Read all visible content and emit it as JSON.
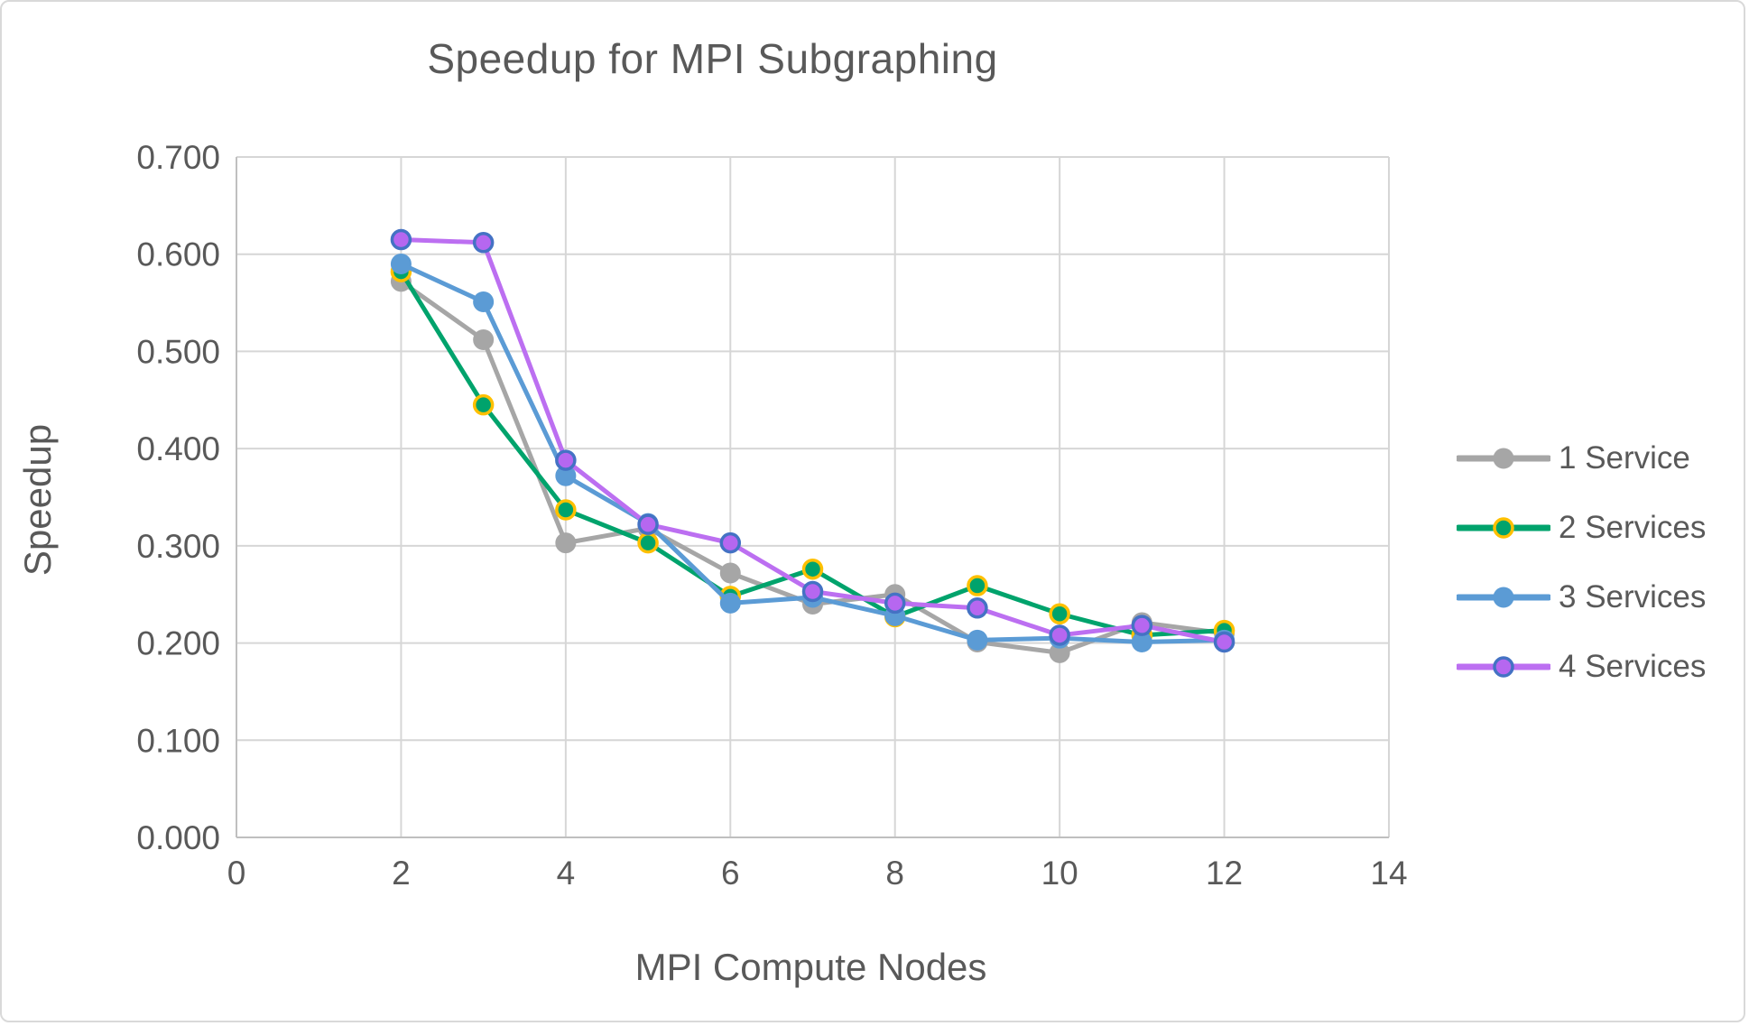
{
  "chart_data": {
    "type": "line",
    "title": "Speedup for MPI Subgraphing",
    "xlabel": "MPI Compute Nodes",
    "ylabel": "Speedup",
    "xlim": [
      0,
      14
    ],
    "ylim": [
      0.0,
      0.7
    ],
    "x_ticks": [
      0,
      2,
      4,
      6,
      8,
      10,
      12,
      14
    ],
    "y_ticks": [
      0.0,
      0.1,
      0.2,
      0.3,
      0.4,
      0.5,
      0.6,
      0.7
    ],
    "y_tick_decimals": 3,
    "grid": true,
    "legend_position": "right",
    "x": [
      2,
      3,
      4,
      5,
      6,
      7,
      8,
      9,
      10,
      11,
      12
    ],
    "series": [
      {
        "name": "1 Service",
        "color": "#A6A6A6",
        "marker_fill": "#A6A6A6",
        "marker_stroke": "#A6A6A6",
        "values": [
          0.572,
          0.512,
          0.303,
          0.318,
          0.272,
          0.24,
          0.25,
          0.201,
          0.19,
          0.221,
          0.21
        ]
      },
      {
        "name": "2 Services",
        "color": "#00A36C",
        "marker_fill": "#00A36C",
        "marker_stroke": "#FFC000",
        "values": [
          0.582,
          0.445,
          0.337,
          0.303,
          0.248,
          0.276,
          0.227,
          0.259,
          0.23,
          0.208,
          0.213
        ]
      },
      {
        "name": "3 Services",
        "color": "#5B9BD5",
        "marker_fill": "#5B9BD5",
        "marker_stroke": "#5B9BD5",
        "values": [
          0.59,
          0.551,
          0.372,
          0.323,
          0.241,
          0.247,
          0.228,
          0.203,
          0.205,
          0.201,
          0.203
        ]
      },
      {
        "name": "4 Services",
        "color": "#BC6FF1",
        "marker_fill": "#B667F0",
        "marker_stroke": "#4472C4",
        "values": [
          0.615,
          0.612,
          0.388,
          0.322,
          0.303,
          0.253,
          0.241,
          0.236,
          0.208,
          0.218,
          0.201
        ]
      }
    ]
  },
  "style_colors": {
    "text": "#595959",
    "gridline": "#D6D6D6",
    "axis_line": "#BFBFBF",
    "background": "#FFFFFF",
    "frame_border": "#D9D9D9"
  }
}
